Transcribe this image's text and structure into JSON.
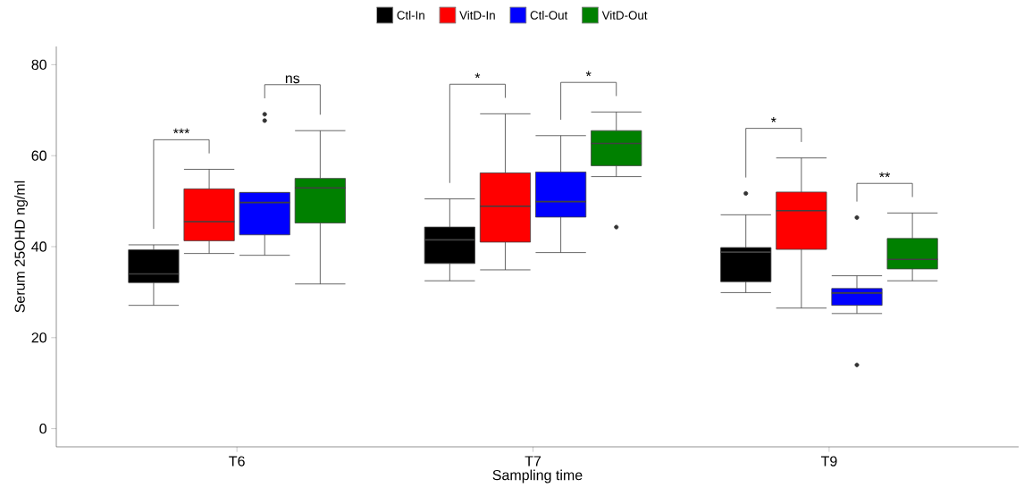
{
  "chart_data": {
    "type": "box",
    "xlabel": "Sampling time",
    "ylabel": "Serum 25OHD ng/ml",
    "categories": [
      "T6",
      "T7",
      "T9"
    ],
    "ylim": [
      -4,
      84
    ],
    "yticks": [
      0,
      20,
      40,
      60,
      80
    ],
    "grid": false,
    "legend": "top",
    "series": [
      {
        "name": "Ctl-In",
        "color": "#000000",
        "boxes": [
          {
            "low": 27.1,
            "q1": 32.1,
            "median": 34.0,
            "q3": 39.3,
            "high": 40.4
          },
          {
            "low": 32.5,
            "q1": 36.3,
            "median": 41.5,
            "q3": 44.3,
            "high": 50.5
          },
          {
            "low": 29.9,
            "q1": 32.3,
            "median": 38.8,
            "q3": 39.8,
            "high": 47.0,
            "outliers": [
              51.7
            ]
          }
        ]
      },
      {
        "name": "VitD-In",
        "color": "#ff0000",
        "boxes": [
          {
            "low": 38.5,
            "q1": 41.3,
            "median": 45.5,
            "q3": 52.7,
            "high": 57.0
          },
          {
            "low": 34.9,
            "q1": 41.0,
            "median": 48.9,
            "q3": 56.2,
            "high": 69.2
          },
          {
            "low": 26.5,
            "q1": 39.4,
            "median": 47.9,
            "q3": 52.0,
            "high": 59.5
          }
        ]
      },
      {
        "name": "Ctl-Out",
        "color": "#0000ff",
        "boxes": [
          {
            "low": 38.1,
            "q1": 42.6,
            "median": 49.7,
            "q3": 51.9,
            "high": 51.9,
            "outliers": [
              69.1,
              67.7
            ]
          },
          {
            "low": 38.7,
            "q1": 46.5,
            "median": 49.9,
            "q3": 56.4,
            "high": 64.4
          },
          {
            "low": 25.3,
            "q1": 27.1,
            "median": 29.8,
            "q3": 30.8,
            "high": 33.6,
            "outliers": [
              46.4,
              14.0
            ]
          }
        ]
      },
      {
        "name": "VitD-Out",
        "color": "#008000",
        "boxes": [
          {
            "low": 31.8,
            "q1": 45.2,
            "median": 52.9,
            "q3": 55.0,
            "high": 65.5
          },
          {
            "low": 55.4,
            "q1": 57.8,
            "median": 62.7,
            "q3": 65.5,
            "high": 69.6,
            "outliers": [
              44.3
            ]
          },
          {
            "low": 32.5,
            "q1": 35.1,
            "median": 37.2,
            "q3": 41.8,
            "high": 47.4
          }
        ]
      }
    ],
    "annotations": [
      "***",
      "ns",
      "*",
      "*",
      "*",
      "**"
    ]
  }
}
